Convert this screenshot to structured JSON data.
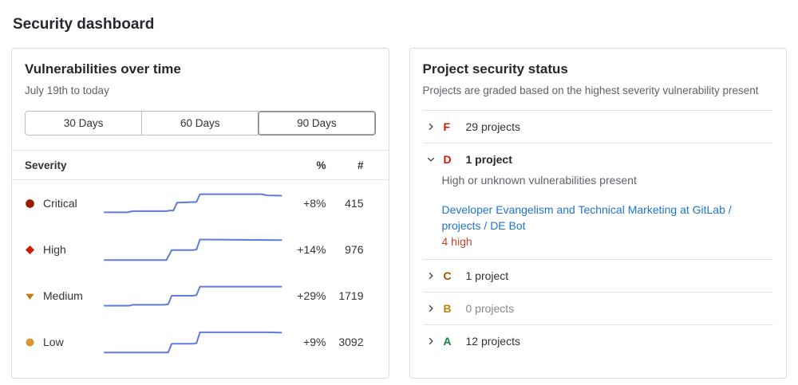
{
  "page": {
    "title": "Security dashboard"
  },
  "vulnerabilities_panel": {
    "title": "Vulnerabilities over time",
    "subtitle": "July 19th to today",
    "range_buttons": [
      {
        "label": "30 Days",
        "selected": false
      },
      {
        "label": "60 Days",
        "selected": false
      },
      {
        "label": "90 Days",
        "selected": true
      }
    ],
    "table": {
      "header": {
        "severity": "Severity",
        "percent": "%",
        "count": "#"
      },
      "rows": [
        {
          "severity": "Critical",
          "icon": "severity-critical-icon",
          "icon_color": "#9a1c00",
          "percent_change": "+8%",
          "count": "415"
        },
        {
          "severity": "High",
          "icon": "severity-high-icon",
          "icon_color": "#c91c00",
          "percent_change": "+14%",
          "count": "976"
        },
        {
          "severity": "Medium",
          "icon": "severity-medium-icon",
          "icon_color": "#c17d10",
          "percent_change": "+29%",
          "count": "1719"
        },
        {
          "severity": "Low",
          "icon": "severity-low-icon",
          "icon_color": "#d99530",
          "percent_change": "+9%",
          "count": "3092"
        }
      ]
    }
  },
  "project_security_panel": {
    "title": "Project security status",
    "subtitle": "Projects are graded based on the highest severity vulnerability present",
    "grades": [
      {
        "letter": "F",
        "letter_color": "#c91c00",
        "count_label": "29 projects",
        "expanded": false,
        "muted": false
      },
      {
        "letter": "D",
        "letter_color": "#c91c00",
        "count_label": "1 project",
        "expanded": true,
        "muted": false,
        "description": "High or unknown vulnerabilities present",
        "project_link_text": "Developer Evangelism and Technical Marketing at GitLab / projects / DE Bot",
        "vulnerability_summary": "4 high"
      },
      {
        "letter": "C",
        "letter_color": "#9e5400",
        "count_label": "1 project",
        "expanded": false,
        "muted": false
      },
      {
        "letter": "B",
        "letter_color": "#c17d10",
        "count_label": "0 projects",
        "expanded": false,
        "muted": true
      },
      {
        "letter": "A",
        "letter_color": "#108548",
        "count_label": "12 projects",
        "expanded": false,
        "muted": false
      }
    ]
  },
  "colors": {
    "sparkline": "#617ae2",
    "link": "#1f75cb",
    "danger_text": "#c0462e"
  },
  "chart_data": {
    "type": "line",
    "title": "Vulnerabilities over time",
    "subtitle": "July 19th to today",
    "x_range": "90 days (July 19th to today)",
    "legend_position": "none",
    "grid": false,
    "note": "Four sparklines, one per severity; points are [x percent of 90-day span, y percent of row height]; counts rose in two visible steps near 36% and 52% of the period",
    "series": [
      {
        "name": "Critical",
        "end_count": 415,
        "percent_change": "+8%",
        "points": [
          [
            0,
            20
          ],
          [
            13,
            20
          ],
          [
            16,
            24
          ],
          [
            35,
            24
          ],
          [
            37,
            26
          ],
          [
            39,
            26
          ],
          [
            41,
            52
          ],
          [
            50,
            54
          ],
          [
            52,
            54
          ],
          [
            54,
            80
          ],
          [
            89,
            80
          ],
          [
            92,
            76
          ],
          [
            100,
            75
          ]
        ]
      },
      {
        "name": "High",
        "end_count": 976,
        "percent_change": "+14%",
        "points": [
          [
            0,
            15
          ],
          [
            35,
            15
          ],
          [
            38,
            48
          ],
          [
            50,
            48
          ],
          [
            52,
            50
          ],
          [
            54,
            83
          ],
          [
            100,
            81
          ]
        ]
      },
      {
        "name": "Medium",
        "end_count": 1719,
        "percent_change": "+29%",
        "points": [
          [
            0,
            17
          ],
          [
            14,
            17
          ],
          [
            16,
            20
          ],
          [
            34,
            20
          ],
          [
            36,
            22
          ],
          [
            38,
            50
          ],
          [
            50,
            50
          ],
          [
            52,
            52
          ],
          [
            54,
            80
          ],
          [
            100,
            80
          ]
        ]
      },
      {
        "name": "Low",
        "end_count": 3092,
        "percent_change": "+9%",
        "points": [
          [
            0,
            15
          ],
          [
            36,
            15
          ],
          [
            38,
            44
          ],
          [
            50,
            44
          ],
          [
            52,
            46
          ],
          [
            54,
            82
          ],
          [
            93,
            82
          ],
          [
            100,
            81
          ]
        ]
      }
    ]
  }
}
